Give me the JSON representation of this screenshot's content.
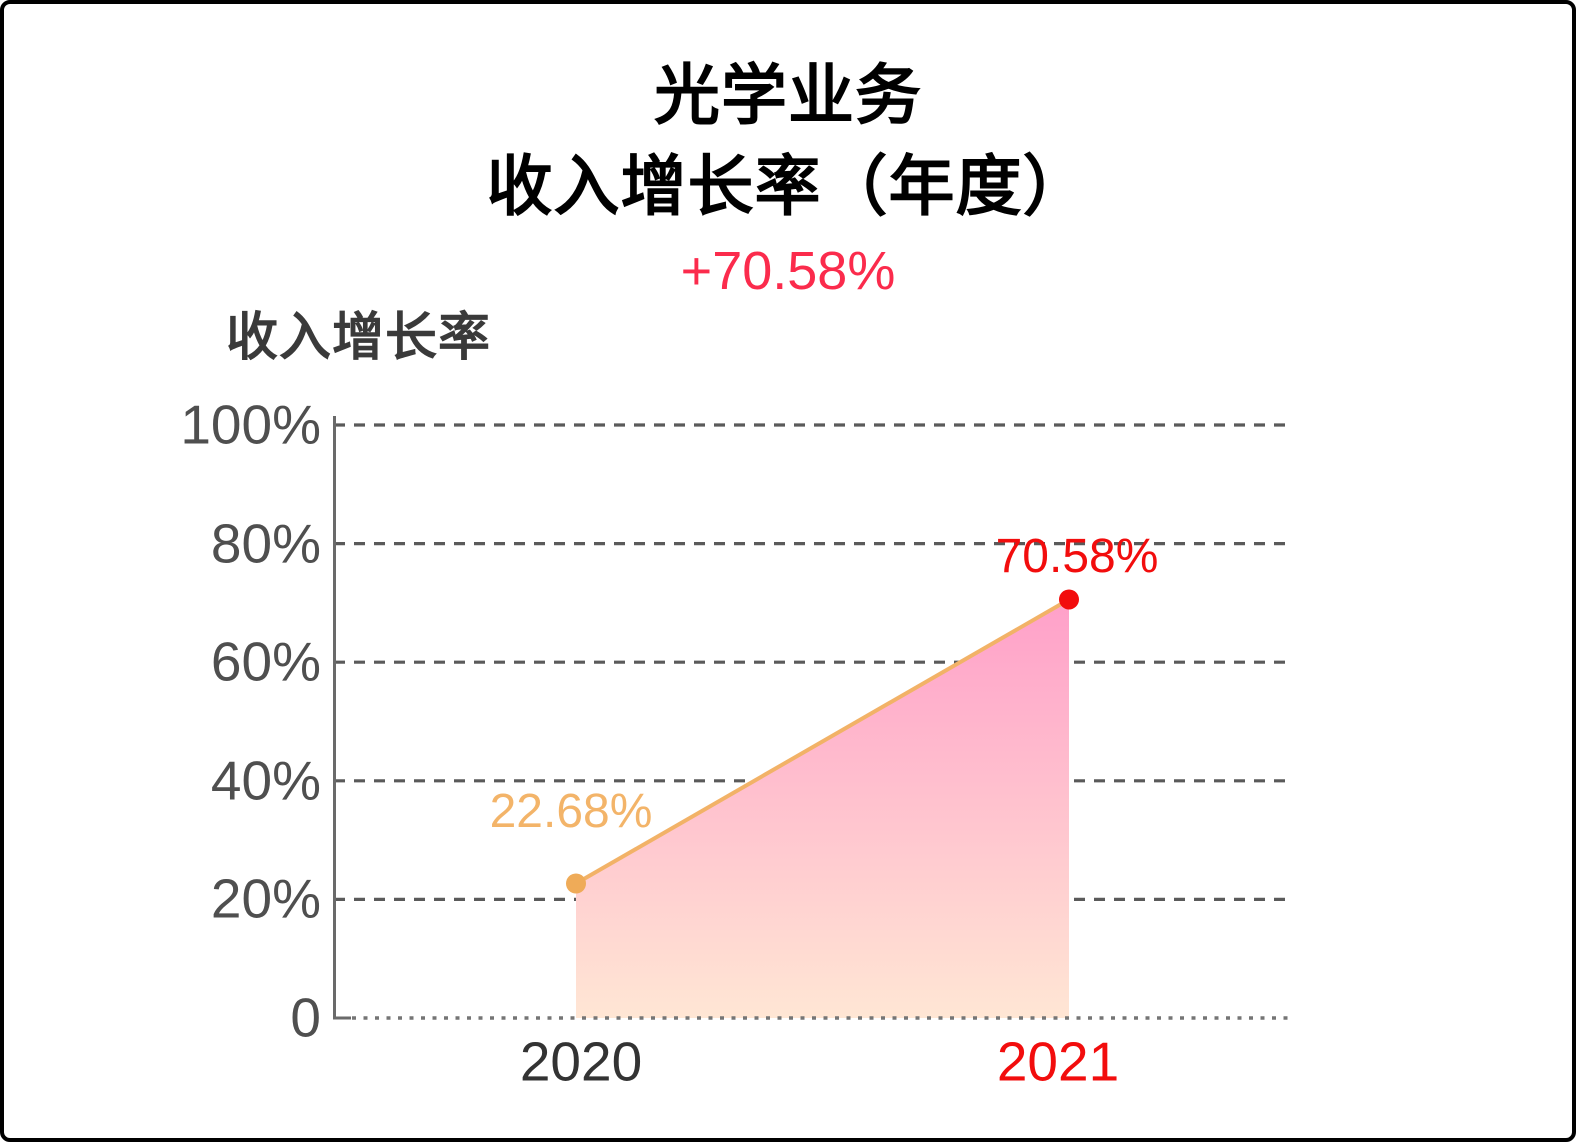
{
  "card": {
    "background": "#ffffff",
    "border_color": "#000000"
  },
  "header": {
    "title_line1": "光学业务",
    "title_line2": "收入增长率（年度）",
    "delta_label": "+70.58%"
  },
  "chart_data": {
    "type": "area",
    "title": "收入增长率",
    "categories": [
      "2020",
      "2021"
    ],
    "series": [
      {
        "name": "收入增长率",
        "values": [
          22.68,
          70.58
        ]
      }
    ],
    "point_labels": [
      "22.68%",
      "70.58%"
    ],
    "ytick_labels": [
      "100%",
      "80%",
      "60%",
      "40%",
      "20%",
      "0"
    ],
    "ytick_values": [
      100,
      80,
      60,
      40,
      20,
      0
    ],
    "ylim": [
      0,
      100
    ],
    "grid": "horizontal-dashed",
    "legend": "none",
    "colors": {
      "title_text": "#000000",
      "section_title_text": "#3a3a3a",
      "delta_text": "#fb2b4c",
      "line": "#f2b267",
      "point_2020": "#efab58",
      "point_2021": "#f20d0d",
      "point_label_2020": "#f3b469",
      "point_label_2021": "#f20d0d",
      "area_top": "#ffa0c9",
      "area_bottom": "#ffe6d4",
      "grid": "#5a5a5a",
      "baseline": "#757575",
      "axis": "#6a6a6a",
      "tick_text": "#4f4f4f",
      "xlabel_2020": "#333333",
      "xlabel_2021": "#f20d0d"
    }
  }
}
